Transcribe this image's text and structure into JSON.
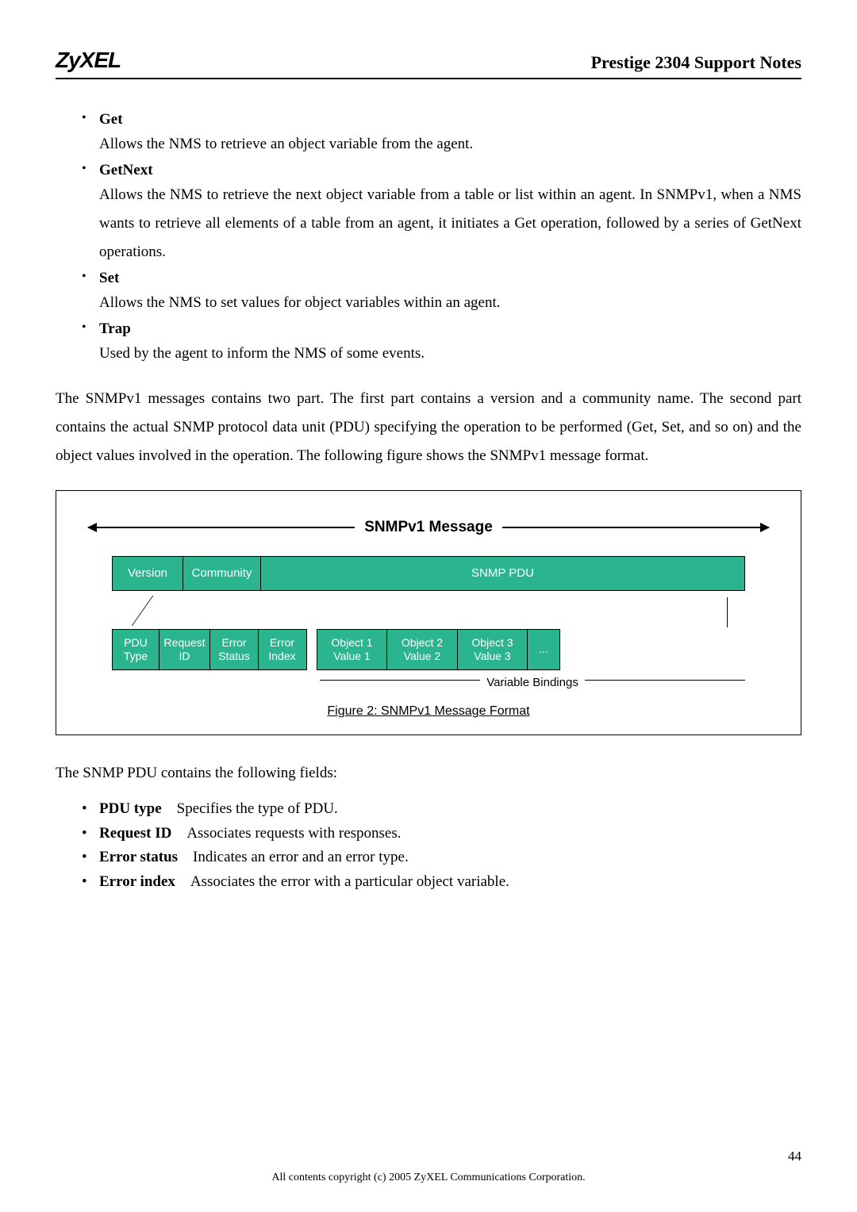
{
  "header": {
    "logo": "ZyXEL",
    "title": "Prestige 2304 Support Notes"
  },
  "ops": [
    {
      "title": "Get",
      "desc": "Allows the NMS to retrieve an object variable from the agent."
    },
    {
      "title": "GetNext",
      "desc": "Allows the NMS to retrieve the next object variable from a table or list within an agent. In SNMPv1, when a NMS wants to retrieve all elements of a table from an agent, it initiates a Get operation, followed by a series of GetNext operations."
    },
    {
      "title": "Set",
      "desc": "Allows the NMS to set values for object variables within an agent."
    },
    {
      "title": "Trap",
      "desc": "Used by the agent to inform the NMS of some events."
    }
  ],
  "para1": "The SNMPv1 messages contains two part. The first part contains a version and a community name. The second part contains the actual SNMP protocol data unit (PDU) specifying the operation to be performed (Get, Set, and so on) and the object values involved in the operation. The following figure shows the SNMPv1 message format.",
  "diagram": {
    "title": "SNMPv1 Message",
    "top": {
      "version": "Version",
      "community": "Community",
      "pdu": "SNMP PDU"
    },
    "bottom": {
      "c1": "PDU Type",
      "c2": "Request ID",
      "c3": "Error Status",
      "c4": "Error Index",
      "c5": "Object 1 Value 1",
      "c6": "Object 2 Value 2",
      "c7": "Object 3 Value 3",
      "c8": "..."
    },
    "vb": "Variable Bindings",
    "caption": "Figure 2: SNMPv1 Message Format",
    "cell_bg": "#2bb58f",
    "cell_fg": "#ffffff"
  },
  "para2": "The SNMP PDU contains the following fields:",
  "fields": [
    {
      "name": "PDU type",
      "desc": "Specifies the type of PDU."
    },
    {
      "name": "Request ID",
      "desc": "Associates requests with responses."
    },
    {
      "name": "Error status",
      "desc": "Indicates an error and an error type."
    },
    {
      "name": "Error index",
      "desc": "Associates the error with a particular object variable."
    }
  ],
  "footer": "All contents copyright (c) 2005 ZyXEL Communications Corporation.",
  "pagenum": "44"
}
